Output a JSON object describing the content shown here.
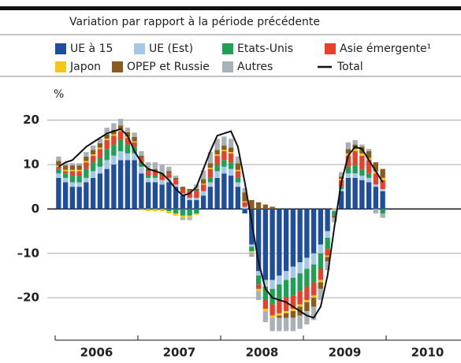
{
  "chart_data": {
    "type": "bar",
    "subtitle": "Variation par rapport à la période précédente",
    "y_unit": "%",
    "categories": [
      null,
      null,
      null,
      null,
      null,
      null,
      null,
      null,
      null,
      null,
      null,
      null,
      null,
      null,
      null,
      null,
      null,
      null,
      null,
      null,
      null,
      null,
      null,
      null,
      null,
      null,
      null,
      null,
      null,
      null,
      null,
      null,
      null,
      null,
      null,
      null,
      null,
      null,
      null,
      null,
      null,
      null,
      null,
      null,
      null,
      null,
      null,
      null
    ],
    "year_labels": [
      "2006",
      "2007",
      "2008",
      "2009",
      "2010"
    ],
    "ylim": [
      -26,
      24
    ],
    "yticks": [
      20,
      10,
      0,
      {
        "value": -10,
        "label": "–10"
      },
      {
        "value": -20,
        "label": "–20"
      }
    ],
    "grid": true,
    "series": [
      {
        "name": "UE à 15",
        "type": "bar",
        "color": "#1f4e9e",
        "values": [
          7,
          6,
          5,
          5,
          6,
          7,
          8,
          9,
          10,
          11,
          11,
          11,
          8,
          6,
          6,
          5.5,
          6,
          5,
          3,
          2,
          2,
          3,
          5,
          7,
          8,
          7.5,
          5,
          -1,
          -8,
          -14,
          -16,
          -16,
          -15,
          -14,
          -13,
          -12,
          -11,
          -10,
          -8,
          -5,
          0,
          4,
          7,
          7,
          6.5,
          6,
          5,
          4
        ]
      },
      {
        "name": "UE (Est)",
        "type": "bar",
        "color": "#a6c8e8",
        "values": [
          1,
          1,
          1,
          1,
          1,
          1.5,
          1.5,
          2,
          2,
          2,
          1.5,
          1.5,
          1.5,
          1,
          1,
          1,
          1,
          0.5,
          0.5,
          0.5,
          0.5,
          1,
          1,
          1.5,
          1.5,
          1.5,
          1,
          0.5,
          -0.5,
          -1,
          -1.5,
          -2,
          -2,
          -2,
          -2.5,
          -2.5,
          -2.5,
          -2.5,
          -2,
          -1.5,
          -0.5,
          0.5,
          1,
          1,
          1,
          1,
          0.5,
          0.5
        ]
      },
      {
        "name": "Etats-Unis",
        "type": "bar",
        "color": "#1fa055",
        "values": [
          1,
          1,
          1.5,
          1.5,
          2,
          2,
          2,
          2.5,
          2.5,
          2.5,
          2,
          1.5,
          1,
          0.5,
          0.5,
          0,
          -0.5,
          -1,
          -1.5,
          -1.5,
          -1,
          0,
          1,
          1.5,
          1.5,
          1.5,
          1,
          0,
          -1,
          -2,
          -3,
          -3.5,
          -3.5,
          -4,
          -4,
          -4,
          -4,
          -4,
          -3.5,
          -2.5,
          -1,
          0.5,
          1.5,
          2,
          1.5,
          1,
          0,
          -1
        ]
      },
      {
        "name": "Asie émergente¹",
        "type": "bar",
        "color": "#e8412b",
        "values": [
          0.5,
          0.5,
          1,
          1,
          1.5,
          1.5,
          2,
          2,
          2,
          2,
          1.5,
          1,
          1,
          1,
          1,
          1,
          1,
          1,
          1,
          1.5,
          1.5,
          1.5,
          2,
          2,
          2,
          2,
          1.5,
          1,
          0,
          -1,
          -2,
          -2.5,
          -3,
          -3,
          -3,
          -3,
          -3,
          -3,
          -2.5,
          -1.5,
          0,
          1.5,
          2.5,
          3,
          3,
          3,
          2.5,
          2
        ]
      },
      {
        "name": "Japon",
        "type": "bar",
        "color": "#f5c518",
        "values": [
          0.3,
          0.3,
          0.3,
          0.3,
          0.3,
          0.3,
          0.3,
          0.3,
          0.3,
          0.3,
          0.3,
          0.2,
          -0.3,
          -0.5,
          -0.5,
          -0.5,
          -0.5,
          -0.5,
          -0.5,
          -0.5,
          -0.3,
          0.2,
          0.3,
          0.3,
          0.3,
          0.3,
          0.3,
          0.2,
          -0.3,
          -0.5,
          -0.5,
          -0.5,
          -0.5,
          -0.5,
          -0.5,
          -0.5,
          -0.5,
          -0.5,
          -0.5,
          -0.3,
          0.2,
          0.3,
          0.5,
          0.5,
          0.5,
          0.5,
          0.5,
          0.5
        ]
      },
      {
        "name": "OPEP et Russie",
        "type": "bar",
        "color": "#8b5a1e",
        "values": [
          1,
          1,
          1,
          1,
          1,
          1,
          1,
          1,
          1,
          1,
          1,
          1,
          0.5,
          0.5,
          0.5,
          0.5,
          0.5,
          0.5,
          0.5,
          0.5,
          0.5,
          1,
          1,
          1,
          1,
          1,
          1.5,
          2,
          2,
          1.5,
          1,
          0.5,
          -0.5,
          -1,
          -1.5,
          -2,
          -2,
          -2,
          -1.5,
          -1,
          -0.5,
          0.5,
          1,
          1,
          1.5,
          1.5,
          2,
          2
        ]
      },
      {
        "name": "Autres",
        "type": "bar",
        "color": "#a9b1b8",
        "values": [
          1,
          0.5,
          0.5,
          0.5,
          1,
          1,
          1,
          1.5,
          1.5,
          1.5,
          1,
          1,
          1,
          1.5,
          1.5,
          2,
          1,
          0.5,
          -0.5,
          -0.5,
          1,
          2,
          2.5,
          2.5,
          2,
          2,
          1.5,
          1,
          -1,
          -2,
          -2.5,
          -3,
          -3,
          -3,
          -3,
          -3,
          -3,
          -3,
          -2.5,
          -2,
          -1,
          1,
          1.5,
          1,
          0.5,
          0.5,
          -1,
          -1
        ]
      },
      {
        "name": "Total",
        "type": "line",
        "color": "#111111",
        "values": [
          9.5,
          10.5,
          11,
          12.5,
          14,
          15,
          16,
          17,
          17.5,
          18,
          16.5,
          13,
          10.5,
          9,
          8.5,
          8,
          6.5,
          4.5,
          3,
          3.5,
          5,
          9,
          13,
          16.5,
          17,
          17.5,
          14,
          6,
          -3,
          -12,
          -18,
          -20,
          -20.5,
          -21,
          -22,
          -23,
          -24,
          -24.5,
          -22,
          -15,
          -4,
          6,
          12,
          14,
          13.5,
          11,
          8.5,
          6
        ]
      }
    ]
  }
}
